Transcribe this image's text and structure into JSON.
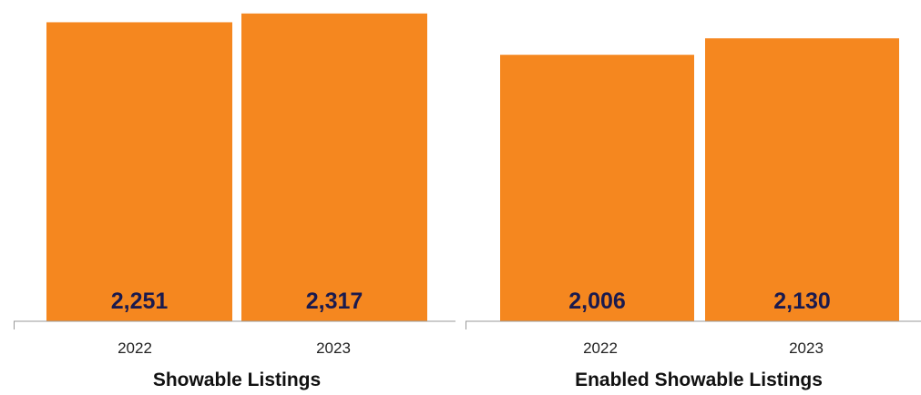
{
  "colors": {
    "bar": "#F5871F",
    "value_text": "#1a1a4e",
    "axis": "#999999"
  },
  "chart_data": [
    {
      "type": "bar",
      "title": "Showable Listings",
      "categories": [
        "2022",
        "2023"
      ],
      "values": [
        2251,
        2317
      ],
      "value_labels": [
        "2,251",
        "2,317"
      ],
      "xlabel": "",
      "ylabel": "",
      "ylim": [
        0,
        2350
      ],
      "grid": false
    },
    {
      "type": "bar",
      "title": "Enabled Showable Listings",
      "categories": [
        "2022",
        "2023"
      ],
      "values": [
        2006,
        2130
      ],
      "value_labels": [
        "2,006",
        "2,130"
      ],
      "xlabel": "",
      "ylabel": "",
      "ylim": [
        0,
        2350
      ],
      "grid": false
    }
  ]
}
